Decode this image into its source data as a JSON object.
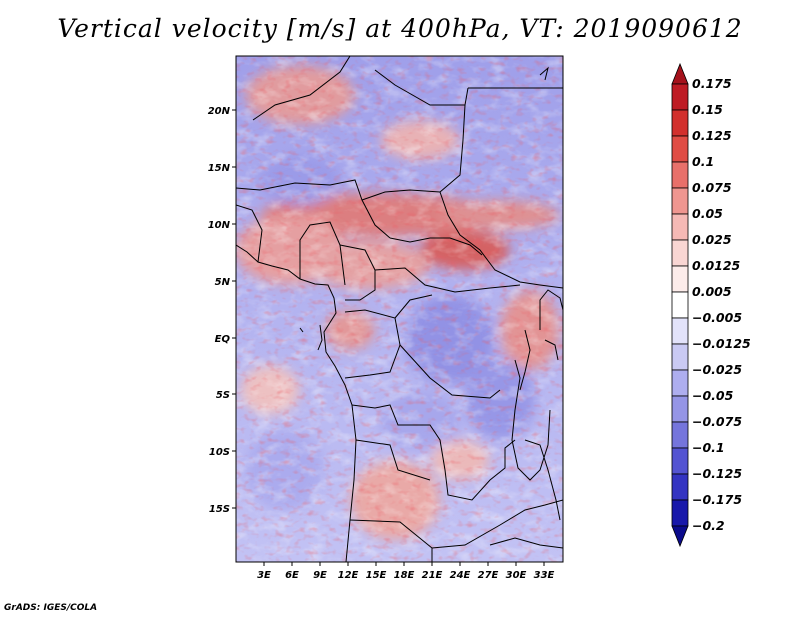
{
  "title": "Vertical velocity [m/s] at 400hPa, VT: 2019090612",
  "footer": "GrADS: IGES/COLA",
  "lat_ticks": [
    "20N",
    "15N",
    "10N",
    "5N",
    "EQ",
    "5S",
    "10S",
    "15S"
  ],
  "lon_ticks": [
    "3E",
    "6E",
    "9E",
    "12E",
    "15E",
    "18E",
    "21E",
    "24E",
    "27E",
    "30E",
    "33E"
  ],
  "colorbar": {
    "labels": [
      "0.175",
      "0.15",
      "0.125",
      "0.1",
      "0.075",
      "0.05",
      "0.025",
      "0.0125",
      "0.005",
      "-0.005",
      "-0.0125",
      "-0.025",
      "-0.05",
      "-0.075",
      "-0.1",
      "-0.125",
      "-0.175",
      "-0.2"
    ],
    "colors": [
      "#a5121c",
      "#be1b24",
      "#d2302d",
      "#e04c44",
      "#e8706a",
      "#ef9690",
      "#f5b9b5",
      "#f9d6d3",
      "#fcecea",
      "#ffffff",
      "#e3e3fa",
      "#cacaf3",
      "#aeaeef",
      "#9595e6",
      "#7575dc",
      "#5454d2",
      "#3434c2",
      "#1818aa",
      "#0b0b8c"
    ]
  },
  "chart_data": {
    "type": "heatmap",
    "title": "Vertical velocity [m/s] at 400hPa, VT: 2019090612",
    "variable": "Vertical velocity",
    "units": "m/s",
    "level": "400hPa",
    "valid_time": "2019090612",
    "lon_range": [
      0,
      35
    ],
    "lat_range": [
      -20,
      25
    ]
  }
}
